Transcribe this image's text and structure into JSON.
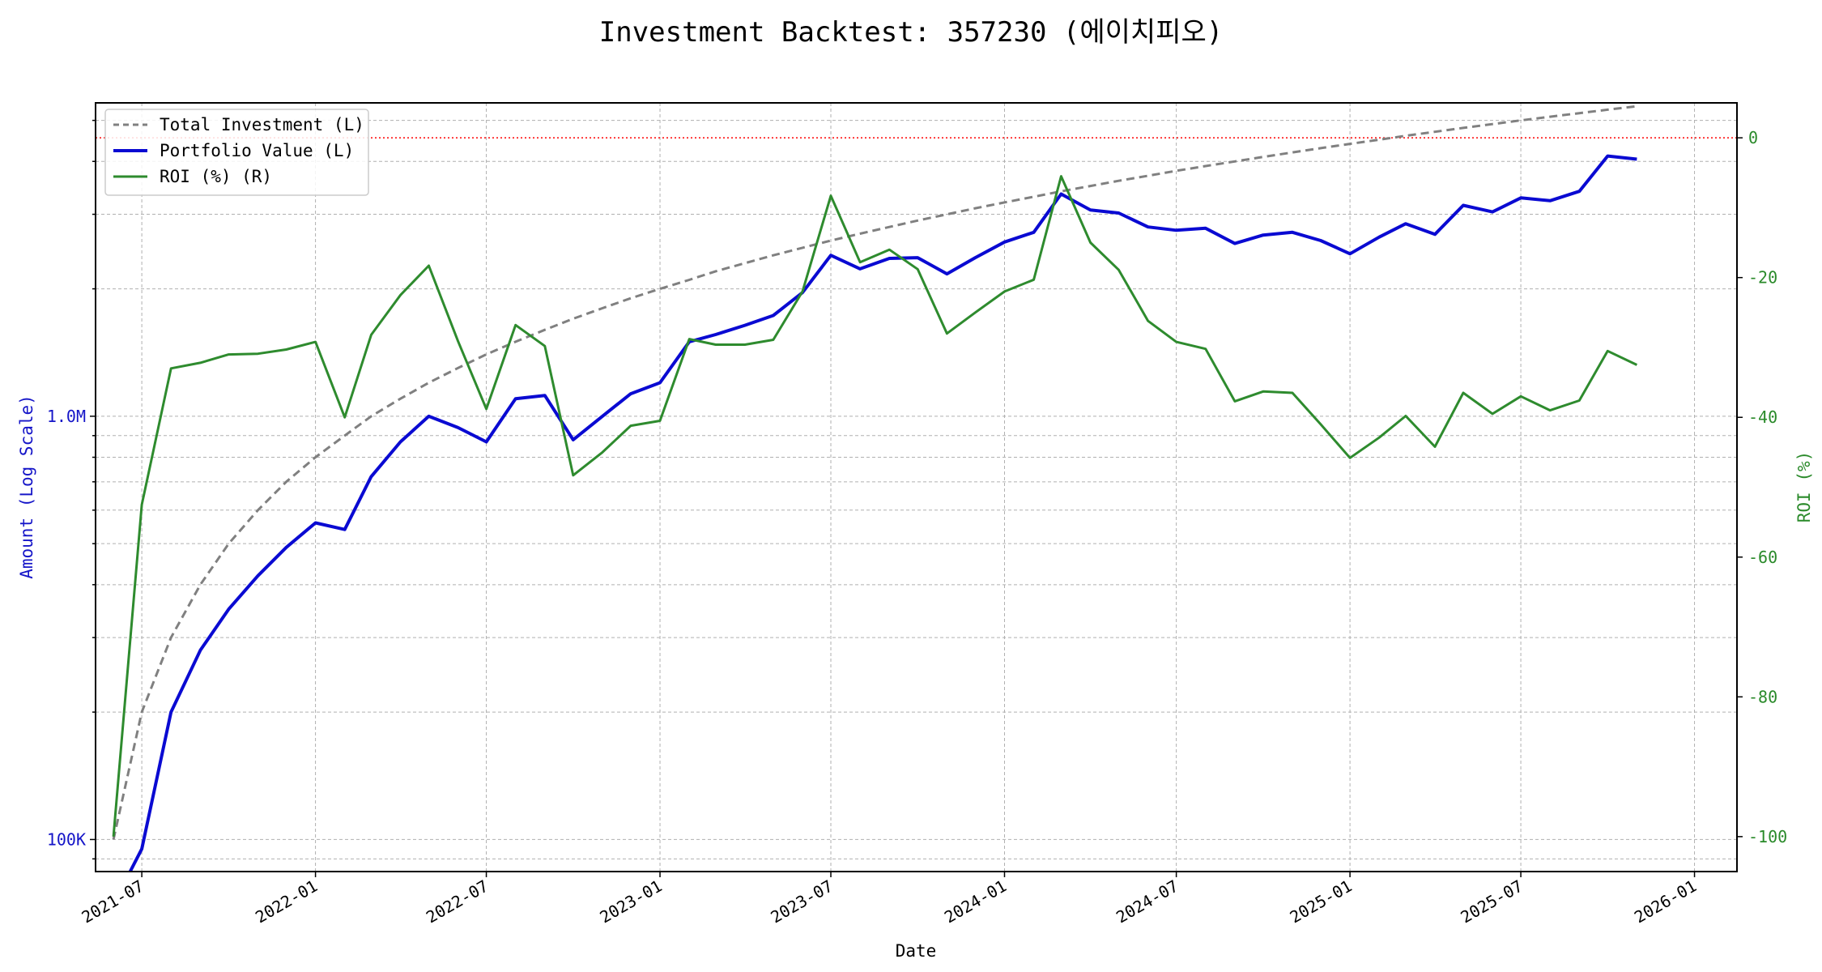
{
  "chart_data": {
    "type": "line",
    "title": "Investment Backtest: 357230 (에이치피오)",
    "xlabel": "Date",
    "ylabel_left": "Amount (Log Scale)",
    "ylabel_right": "ROI (%)",
    "left_scale": "log",
    "ylim_left": [
      84000,
      5500000
    ],
    "ylim_right": [
      -105,
      5
    ],
    "xlim": [
      "2021-05-13",
      "2026-02-15"
    ],
    "grid": true,
    "legend_position": "upper-left",
    "x_ticks": [
      "2021-07",
      "2022-01",
      "2022-07",
      "2023-01",
      "2023-07",
      "2024-01",
      "2024-07",
      "2025-01",
      "2025-07",
      "2026-01"
    ],
    "y_ticks_left": [
      {
        "value": 100000,
        "label": "100K"
      },
      {
        "value": 1000000,
        "label": "1.0M"
      }
    ],
    "y_ticks_right": [
      0,
      -20,
      -40,
      -60,
      -80,
      -100
    ],
    "reference_line": {
      "axis": "right",
      "value": 0,
      "color": "#ff0000",
      "style": "dotted"
    },
    "colors": {
      "total": "#808080",
      "portfolio": "#0a0ad2",
      "roi": "#2e8b2e",
      "left_axis": "#1515c8",
      "right_axis": "#2a8a2a"
    },
    "x": [
      "2021-06-01",
      "2021-07-01",
      "2021-08-01",
      "2021-09-01",
      "2021-10-01",
      "2021-11-01",
      "2021-12-01",
      "2022-01-01",
      "2022-02-01",
      "2022-03-01",
      "2022-04-01",
      "2022-05-01",
      "2022-06-01",
      "2022-07-01",
      "2022-08-01",
      "2022-09-01",
      "2022-10-01",
      "2022-11-01",
      "2022-12-01",
      "2023-01-01",
      "2023-02-01",
      "2023-03-01",
      "2023-04-01",
      "2023-05-01",
      "2023-06-01",
      "2023-07-01",
      "2023-08-01",
      "2023-09-01",
      "2023-10-01",
      "2023-11-01",
      "2023-12-01",
      "2024-01-01",
      "2024-02-01",
      "2024-03-01",
      "2024-04-01",
      "2024-05-01",
      "2024-06-01",
      "2024-07-01",
      "2024-08-01",
      "2024-09-01",
      "2024-10-01",
      "2024-11-01",
      "2024-12-01",
      "2025-01-01",
      "2025-02-01",
      "2025-03-01",
      "2025-04-01",
      "2025-05-01",
      "2025-06-01",
      "2025-07-01",
      "2025-08-01",
      "2025-09-01",
      "2025-10-01",
      "2025-11-01"
    ],
    "series": [
      {
        "name": "Total Investment (L)",
        "axis": "left",
        "style": "dashed",
        "values": [
          100000,
          200000,
          300000,
          400000,
          500000,
          600000,
          700000,
          800000,
          900000,
          1000000,
          1100000,
          1200000,
          1300000,
          1400000,
          1500000,
          1600000,
          1700000,
          1800000,
          1900000,
          2000000,
          2100000,
          2200000,
          2300000,
          2400000,
          2500000,
          2600000,
          2700000,
          2800000,
          2900000,
          3000000,
          3100000,
          3200000,
          3300000,
          3400000,
          3500000,
          3600000,
          3700000,
          3800000,
          3900000,
          4000000,
          4100000,
          4200000,
          4300000,
          4400000,
          4500000,
          4600000,
          4700000,
          4800000,
          4900000,
          5000000,
          5100000,
          5200000,
          5300000,
          5400000
        ]
      },
      {
        "name": "Portfolio Value (L)",
        "axis": "left",
        "style": "solid",
        "values": [
          0,
          95000,
          200000,
          280000,
          350000,
          420000,
          490000,
          560000,
          540000,
          720000,
          870000,
          1000000,
          940000,
          870000,
          1100000,
          1120000,
          880000,
          1000000,
          1130000,
          1200000,
          1500000,
          1560000,
          1640000,
          1730000,
          1960000,
          2400000,
          2230000,
          2360000,
          2370000,
          2170000,
          2370000,
          2580000,
          2720000,
          3350000,
          3070000,
          3020000,
          2800000,
          2750000,
          2780000,
          2560000,
          2680000,
          2720000,
          2600000,
          2420000,
          2650000,
          2850000,
          2690000,
          3150000,
          3040000,
          3280000,
          3230000,
          3400000,
          4120000,
          4050000
        ]
      },
      {
        "name": "ROI (%) (R)",
        "axis": "right",
        "style": "solid",
        "values": [
          -100,
          -52.5,
          -33,
          -32.2,
          -31,
          -30.9,
          -30.3,
          -29.2,
          -40,
          -28.2,
          -22.5,
          -18.3,
          -29.1,
          -38.8,
          -26.8,
          -29.8,
          -48.3,
          -45,
          -41.2,
          -40.5,
          -28.8,
          -29.6,
          -29.6,
          -28.9,
          -22,
          -8.3,
          -17.8,
          -16,
          -18.8,
          -28,
          -25,
          -22,
          -20.3,
          -5.5,
          -15,
          -18.9,
          -26.2,
          -29.2,
          -30.2,
          -37.7,
          -36.3,
          -36.5,
          -41,
          -45.8,
          -42.9,
          -39.8,
          -44.2,
          -36.5,
          -39.5,
          -37,
          -39,
          -37.6,
          -30.5,
          -32.5
        ]
      }
    ]
  }
}
